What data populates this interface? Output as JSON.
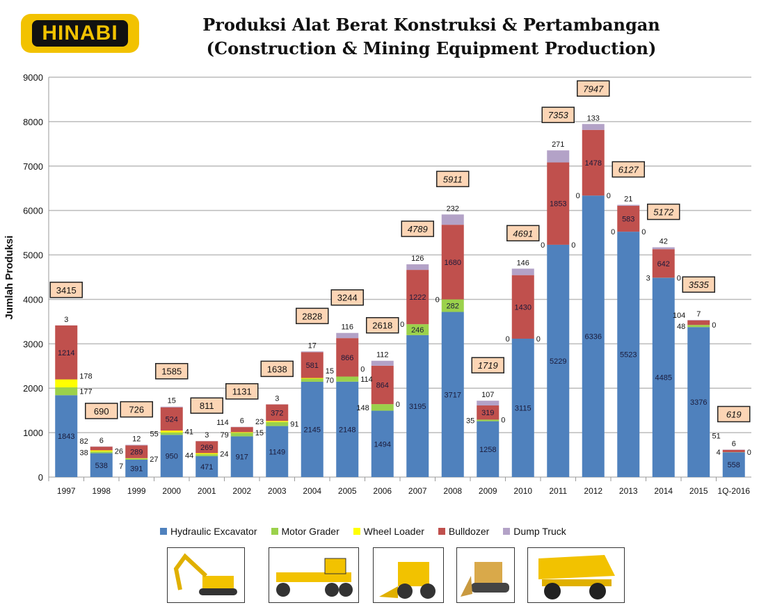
{
  "logo": "HINABI",
  "chart_data": {
    "type": "bar",
    "stacked": true,
    "title": "Produksi Alat Berat Konstruksi & Pertambangan",
    "subtitle": "(Construction & Mining Equipment Production)",
    "xlabel": "",
    "ylabel": "Jumlah Produksi",
    "ylim": [
      0,
      9000
    ],
    "yticks": [
      0,
      1000,
      2000,
      3000,
      4000,
      5000,
      6000,
      7000,
      8000,
      9000
    ],
    "grid": true,
    "legend_position": "bottom",
    "categories": [
      "1997",
      "1998",
      "1999",
      "2000",
      "2001",
      "2002",
      "2003",
      "2004",
      "2005",
      "2006",
      "2007",
      "2008",
      "2009",
      "2010",
      "2011",
      "2012",
      "2013",
      "2014",
      "2015",
      "1Q-2016"
    ],
    "series": [
      {
        "name": "Hydraulic Excavator",
        "color": "#4f81bd",
        "values": [
          1843,
          538,
          391,
          950,
          471,
          917,
          1149,
          2145,
          2148,
          1494,
          3195,
          3717,
          1258,
          3115,
          5229,
          6336,
          5523,
          4485,
          3376,
          558
        ]
      },
      {
        "name": "Motor Grader",
        "color": "#9bd14b",
        "values": [
          177,
          38,
          27,
          55,
          44,
          79,
          91,
          70,
          114,
          148,
          246,
          282,
          35,
          0,
          0,
          0,
          0,
          3,
          48,
          4
        ]
      },
      {
        "name": "Wheel Loader",
        "color": "#ffff00",
        "values": [
          178,
          26,
          7,
          41,
          24,
          15,
          23,
          15,
          0,
          0,
          0,
          0,
          0,
          0,
          0,
          0,
          0,
          0,
          0,
          0
        ]
      },
      {
        "name": "Bulldozer",
        "color": "#c0504d",
        "values": [
          1214,
          82,
          289,
          524,
          269,
          114,
          372,
          581,
          866,
          864,
          1222,
          1680,
          319,
          1430,
          1853,
          1478,
          583,
          642,
          104,
          51
        ]
      },
      {
        "name": "Dump Truck",
        "color": "#b3a2c7",
        "values": [
          3,
          6,
          12,
          15,
          3,
          6,
          3,
          17,
          116,
          112,
          126,
          232,
          107,
          146,
          271,
          133,
          21,
          42,
          7,
          6
        ]
      }
    ],
    "totals": [
      3415,
      690,
      726,
      1585,
      811,
      1131,
      1638,
      2828,
      3244,
      2618,
      4789,
      5911,
      1719,
      4691,
      7353,
      7947,
      6127,
      5172,
      3535,
      619
    ]
  }
}
